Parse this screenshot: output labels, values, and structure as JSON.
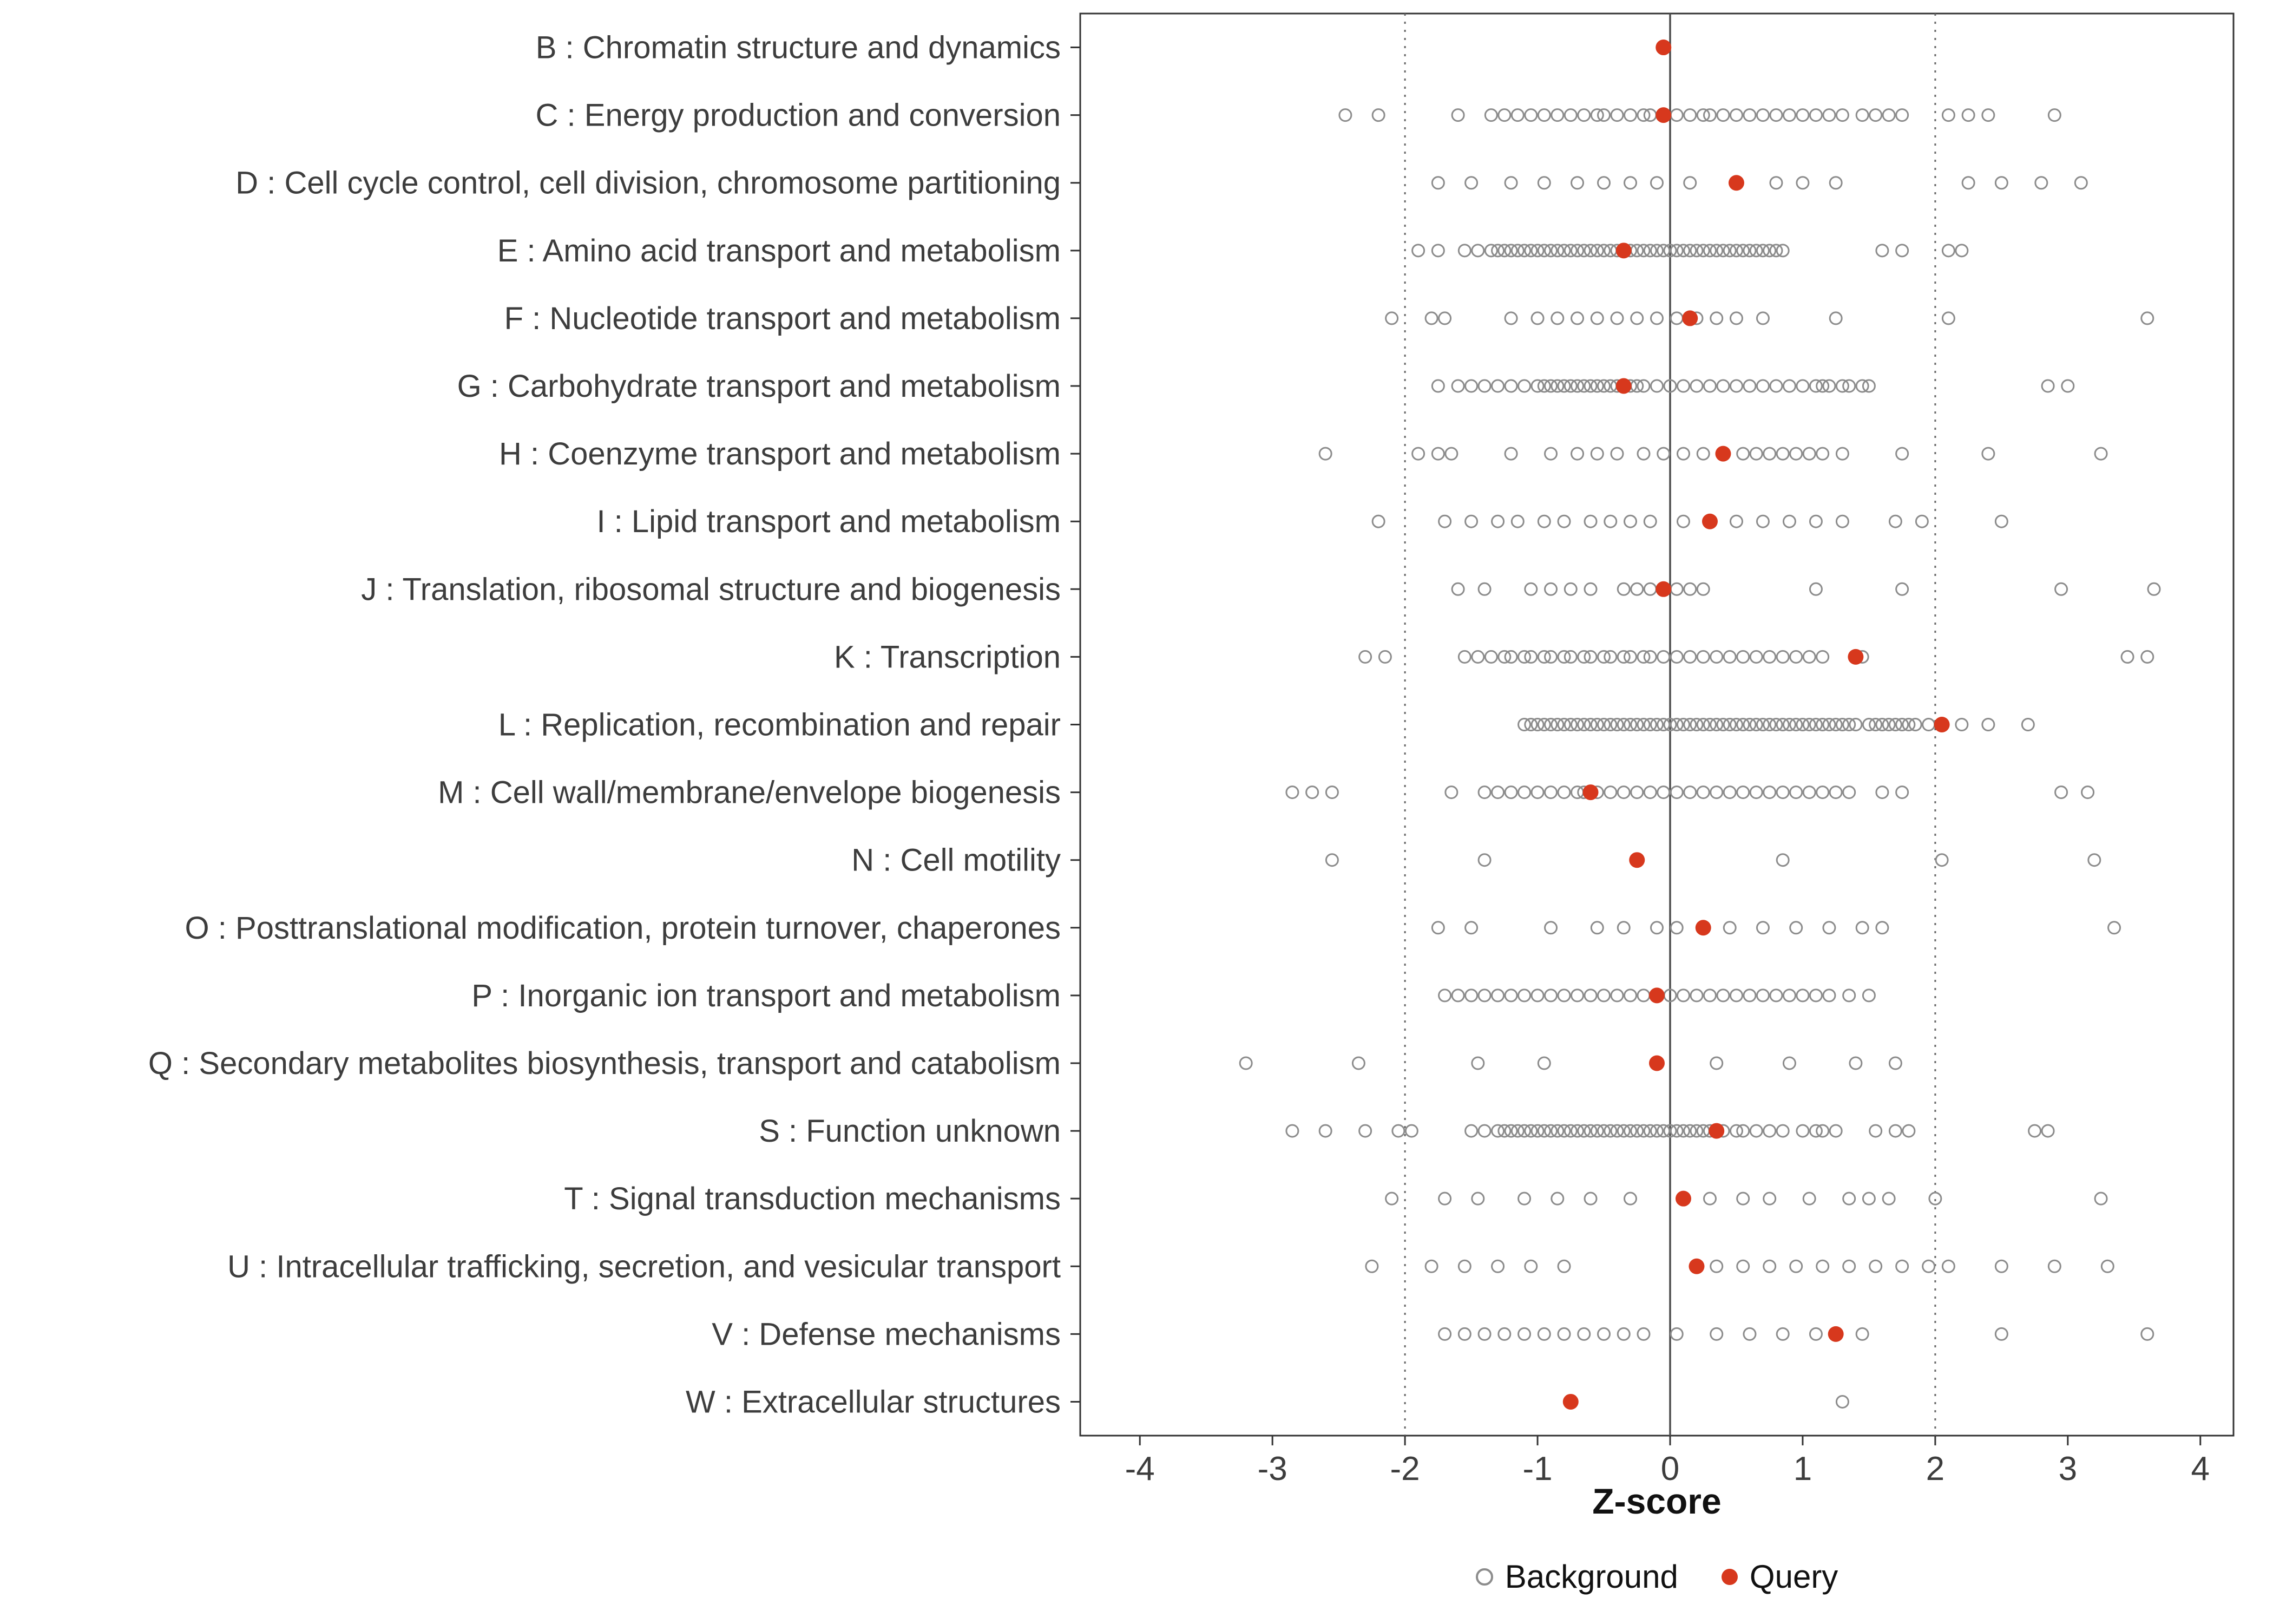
{
  "chart_data": {
    "type": "scatter",
    "title": "",
    "xlabel": "Z-score",
    "ylabel": "",
    "xlim": [
      -4.45,
      4.25
    ],
    "xticks": [
      -4,
      -3,
      -2,
      -1,
      0,
      1,
      2,
      3,
      4
    ],
    "grid": "off",
    "legend_position": "bottom",
    "ref_lines": {
      "solid": [
        0
      ],
      "dotted": [
        -2,
        2
      ]
    },
    "legend": [
      {
        "label": "Background",
        "marker": "open-circle",
        "color": "#8c8c8c"
      },
      {
        "label": "Query",
        "marker": "filled-circle",
        "color": "#d7381d"
      }
    ],
    "colors": {
      "background_stroke": "#8c8c8c",
      "query_fill": "#d7381d",
      "panel_border": "#333333",
      "ref_solid": "#4d4d4d",
      "ref_dotted": "#666666",
      "axis_text": "#3d3d3d"
    },
    "rows": [
      {
        "label": "B : Chromatin structure and dynamics",
        "query": -0.05,
        "background": []
      },
      {
        "label": "C : Energy production and conversion",
        "query": -0.05,
        "background": [
          -2.45,
          -2.2,
          -1.6,
          -1.35,
          -1.25,
          -1.15,
          -1.05,
          -0.95,
          -0.85,
          -0.75,
          -0.65,
          -0.55,
          -0.5,
          -0.4,
          -0.3,
          -0.2,
          -0.15,
          -0.05,
          0.05,
          0.15,
          0.25,
          0.3,
          0.4,
          0.5,
          0.6,
          0.7,
          0.8,
          0.9,
          1.0,
          1.1,
          1.2,
          1.3,
          1.45,
          1.55,
          1.65,
          1.75,
          2.1,
          2.25,
          2.4,
          2.9
        ]
      },
      {
        "label": "D : Cell cycle control, cell division, chromosome partitioning",
        "query": 0.5,
        "background": [
          -1.75,
          -1.5,
          -1.2,
          -0.95,
          -0.7,
          -0.5,
          -0.3,
          -0.1,
          0.15,
          0.8,
          1.0,
          1.25,
          2.25,
          2.5,
          2.8,
          3.1
        ]
      },
      {
        "label": "E : Amino acid transport and metabolism",
        "query": -0.35,
        "background": [
          -1.9,
          -1.75,
          -1.55,
          -1.45,
          -1.35,
          -1.3,
          -1.25,
          -1.2,
          -1.15,
          -1.1,
          -1.05,
          -1.0,
          -0.95,
          -0.9,
          -0.85,
          -0.8,
          -0.75,
          -0.7,
          -0.65,
          -0.6,
          -0.55,
          -0.5,
          -0.45,
          -0.4,
          -0.3,
          -0.25,
          -0.2,
          -0.15,
          -0.1,
          -0.05,
          0.0,
          0.05,
          0.1,
          0.15,
          0.2,
          0.25,
          0.3,
          0.35,
          0.4,
          0.45,
          0.5,
          0.55,
          0.6,
          0.65,
          0.7,
          0.75,
          0.8,
          0.85,
          1.6,
          1.75,
          2.1,
          2.2
        ]
      },
      {
        "label": "F : Nucleotide transport and metabolism",
        "query": 0.15,
        "background": [
          -2.1,
          -1.8,
          -1.7,
          -1.2,
          -1.0,
          -0.85,
          -0.7,
          -0.55,
          -0.4,
          -0.25,
          -0.1,
          0.05,
          0.2,
          0.35,
          0.5,
          0.7,
          1.25,
          2.1,
          3.6
        ]
      },
      {
        "label": "G : Carbohydrate transport and metabolism",
        "query": -0.35,
        "background": [
          -1.75,
          -1.6,
          -1.5,
          -1.4,
          -1.3,
          -1.2,
          -1.1,
          -1.0,
          -0.95,
          -0.9,
          -0.85,
          -0.8,
          -0.75,
          -0.7,
          -0.65,
          -0.6,
          -0.55,
          -0.5,
          -0.45,
          -0.4,
          -0.35,
          -0.3,
          -0.25,
          -0.2,
          -0.1,
          0.0,
          0.1,
          0.2,
          0.3,
          0.4,
          0.5,
          0.6,
          0.7,
          0.8,
          0.9,
          1.0,
          1.1,
          1.15,
          1.2,
          1.3,
          1.35,
          1.45,
          1.5,
          2.85,
          3.0
        ]
      },
      {
        "label": "H : Coenzyme transport and metabolism",
        "query": 0.4,
        "background": [
          -2.6,
          -1.9,
          -1.75,
          -1.65,
          -1.2,
          -0.9,
          -0.7,
          -0.55,
          -0.4,
          -0.2,
          -0.05,
          0.1,
          0.25,
          0.55,
          0.65,
          0.75,
          0.85,
          0.95,
          1.05,
          1.15,
          1.3,
          1.75,
          2.4,
          3.25
        ]
      },
      {
        "label": "I : Lipid transport and metabolism",
        "query": 0.3,
        "background": [
          -2.2,
          -1.7,
          -1.5,
          -1.3,
          -1.15,
          -0.95,
          -0.8,
          -0.6,
          -0.45,
          -0.3,
          -0.15,
          0.1,
          0.5,
          0.7,
          0.9,
          1.1,
          1.3,
          1.7,
          1.9,
          2.5
        ]
      },
      {
        "label": "J : Translation, ribosomal structure and biogenesis",
        "query": -0.05,
        "background": [
          -1.6,
          -1.4,
          -1.05,
          -0.9,
          -0.75,
          -0.6,
          -0.35,
          -0.25,
          -0.15,
          -0.05,
          0.05,
          0.15,
          0.25,
          1.1,
          1.75,
          2.95,
          3.65
        ]
      },
      {
        "label": "K : Transcription",
        "query": 1.4,
        "background": [
          -2.3,
          -2.15,
          -1.55,
          -1.45,
          -1.35,
          -1.25,
          -1.2,
          -1.1,
          -1.05,
          -0.95,
          -0.9,
          -0.8,
          -0.75,
          -0.65,
          -0.6,
          -0.5,
          -0.45,
          -0.35,
          -0.3,
          -0.2,
          -0.15,
          -0.05,
          0.05,
          0.15,
          0.25,
          0.35,
          0.45,
          0.55,
          0.65,
          0.75,
          0.85,
          0.95,
          1.05,
          1.15,
          1.45,
          3.45,
          3.6
        ]
      },
      {
        "label": "L : Replication, recombination and repair",
        "query": 2.05,
        "background": [
          -1.1,
          -1.05,
          -1.0,
          -0.95,
          -0.9,
          -0.85,
          -0.8,
          -0.75,
          -0.7,
          -0.65,
          -0.6,
          -0.55,
          -0.5,
          -0.45,
          -0.4,
          -0.35,
          -0.3,
          -0.25,
          -0.2,
          -0.15,
          -0.1,
          -0.05,
          0.0,
          0.05,
          0.1,
          0.15,
          0.2,
          0.25,
          0.3,
          0.35,
          0.4,
          0.45,
          0.5,
          0.55,
          0.6,
          0.65,
          0.7,
          0.75,
          0.8,
          0.85,
          0.9,
          0.95,
          1.0,
          1.05,
          1.1,
          1.15,
          1.2,
          1.25,
          1.3,
          1.35,
          1.4,
          1.5,
          1.55,
          1.6,
          1.65,
          1.7,
          1.75,
          1.8,
          1.85,
          1.95,
          2.2,
          2.4,
          2.7
        ]
      },
      {
        "label": "M : Cell wall/membrane/envelope biogenesis",
        "query": -0.6,
        "background": [
          -2.85,
          -2.7,
          -2.55,
          -1.65,
          -1.4,
          -1.3,
          -1.2,
          -1.1,
          -1.0,
          -0.9,
          -0.8,
          -0.7,
          -0.65,
          -0.55,
          -0.45,
          -0.35,
          -0.25,
          -0.15,
          -0.05,
          0.05,
          0.15,
          0.25,
          0.35,
          0.45,
          0.55,
          0.65,
          0.75,
          0.85,
          0.95,
          1.05,
          1.15,
          1.25,
          1.35,
          1.6,
          1.75,
          2.95,
          3.15
        ]
      },
      {
        "label": "N : Cell motility",
        "query": -0.25,
        "background": [
          -2.55,
          -1.4,
          0.85,
          2.05,
          3.2
        ]
      },
      {
        "label": "O : Posttranslational modification, protein turnover, chaperones",
        "query": 0.25,
        "background": [
          -1.75,
          -1.5,
          -0.9,
          -0.55,
          -0.35,
          -0.1,
          0.05,
          0.45,
          0.7,
          0.95,
          1.2,
          1.45,
          1.6,
          3.35
        ]
      },
      {
        "label": "P : Inorganic ion transport and metabolism",
        "query": -0.1,
        "background": [
          -1.7,
          -1.6,
          -1.5,
          -1.4,
          -1.3,
          -1.2,
          -1.1,
          -1.0,
          -0.9,
          -0.8,
          -0.7,
          -0.6,
          -0.5,
          -0.4,
          -0.3,
          -0.2,
          -0.1,
          0.0,
          0.1,
          0.2,
          0.3,
          0.4,
          0.5,
          0.6,
          0.7,
          0.8,
          0.9,
          1.0,
          1.1,
          1.2,
          1.35,
          1.5
        ]
      },
      {
        "label": "Q : Secondary metabolites biosynthesis, transport and catabolism",
        "query": -0.1,
        "background": [
          -3.2,
          -2.35,
          -1.45,
          -0.95,
          0.35,
          0.9,
          1.4,
          1.7
        ]
      },
      {
        "label": "S : Function unknown",
        "query": 0.35,
        "background": [
          -2.85,
          -2.6,
          -2.3,
          -2.05,
          -1.95,
          -1.5,
          -1.4,
          -1.3,
          -1.25,
          -1.2,
          -1.15,
          -1.1,
          -1.05,
          -1.0,
          -0.95,
          -0.9,
          -0.85,
          -0.8,
          -0.75,
          -0.7,
          -0.65,
          -0.6,
          -0.55,
          -0.5,
          -0.45,
          -0.4,
          -0.35,
          -0.3,
          -0.25,
          -0.2,
          -0.15,
          -0.1,
          -0.05,
          0.0,
          0.05,
          0.1,
          0.15,
          0.2,
          0.25,
          0.3,
          0.4,
          0.5,
          0.55,
          0.65,
          0.75,
          0.85,
          1.0,
          1.1,
          1.15,
          1.25,
          1.55,
          1.7,
          1.8,
          2.75,
          2.85
        ]
      },
      {
        "label": "T : Signal transduction mechanisms",
        "query": 0.1,
        "background": [
          -2.1,
          -1.7,
          -1.45,
          -1.1,
          -0.85,
          -0.6,
          -0.3,
          0.3,
          0.55,
          0.75,
          1.05,
          1.35,
          1.5,
          1.65,
          2.0,
          3.25
        ]
      },
      {
        "label": "U : Intracellular trafficking, secretion, and vesicular transport",
        "query": 0.2,
        "background": [
          -2.25,
          -1.8,
          -1.55,
          -1.3,
          -1.05,
          -0.8,
          0.35,
          0.55,
          0.75,
          0.95,
          1.15,
          1.35,
          1.55,
          1.75,
          1.95,
          2.1,
          2.5,
          2.9,
          3.3
        ]
      },
      {
        "label": "V : Defense mechanisms",
        "query": 1.25,
        "background": [
          -1.7,
          -1.55,
          -1.4,
          -1.25,
          -1.1,
          -0.95,
          -0.8,
          -0.65,
          -0.5,
          -0.35,
          -0.2,
          0.05,
          0.35,
          0.6,
          0.85,
          1.1,
          1.45,
          2.5,
          3.6
        ]
      },
      {
        "label": "W : Extracellular structures",
        "query": -0.75,
        "background": [
          1.3
        ]
      }
    ]
  }
}
